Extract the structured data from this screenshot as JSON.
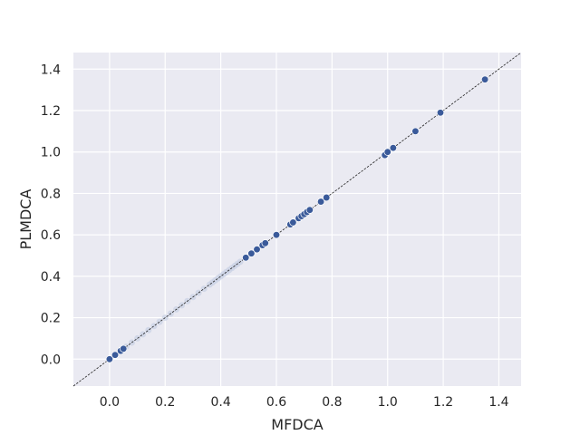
{
  "chart_data": {
    "type": "scatter",
    "title": "",
    "xlabel": "MFDCA",
    "ylabel": "PLMDCA",
    "xlim": [
      -0.13,
      1.48
    ],
    "ylim": [
      -0.13,
      1.48
    ],
    "xticks": [
      "0.0",
      "0.2",
      "0.4",
      "0.6",
      "0.8",
      "1.0",
      "1.2",
      "1.4"
    ],
    "yticks": [
      "0.0",
      "0.2",
      "0.4",
      "0.6",
      "0.8",
      "1.0",
      "1.2",
      "1.4"
    ],
    "grid": true,
    "reference_line": {
      "style": "dashed",
      "slope": 1,
      "intercept": 0,
      "color": "#222222"
    },
    "colors": {
      "background": "#eaeaf2",
      "grid": "#ffffff",
      "points": "#3a5a9a",
      "edge": "#ffffff",
      "light_points": "#c7d0e4"
    },
    "series": [
      {
        "x": [
          0.0,
          0.02,
          0.04,
          0.05,
          0.49,
          0.51,
          0.53,
          0.55,
          0.56,
          0.6,
          0.65,
          0.66,
          0.68,
          0.69,
          0.7,
          0.71,
          0.72,
          0.76,
          0.78,
          0.99,
          1.0,
          1.02,
          1.1,
          1.19,
          1.35
        ],
        "y": [
          0.0,
          0.02,
          0.04,
          0.05,
          0.49,
          0.51,
          0.53,
          0.55,
          0.56,
          0.6,
          0.65,
          0.66,
          0.68,
          0.69,
          0.7,
          0.71,
          0.72,
          0.76,
          0.78,
          0.985,
          1.0,
          1.02,
          1.1,
          1.19,
          1.35
        ]
      },
      {
        "x": [
          0.06,
          0.08,
          0.1,
          0.12,
          0.14,
          0.16,
          0.18,
          0.2,
          0.22,
          0.24,
          0.26,
          0.28,
          0.3,
          0.32,
          0.34,
          0.36,
          0.37,
          0.38,
          0.39,
          0.4,
          0.41,
          0.42,
          0.43,
          0.44,
          0.45,
          0.46,
          0.47
        ],
        "y": [
          0.06,
          0.08,
          0.1,
          0.12,
          0.14,
          0.16,
          0.18,
          0.2,
          0.22,
          0.24,
          0.26,
          0.28,
          0.3,
          0.32,
          0.34,
          0.36,
          0.37,
          0.38,
          0.39,
          0.4,
          0.41,
          0.42,
          0.43,
          0.44,
          0.45,
          0.46,
          0.47
        ]
      }
    ]
  }
}
